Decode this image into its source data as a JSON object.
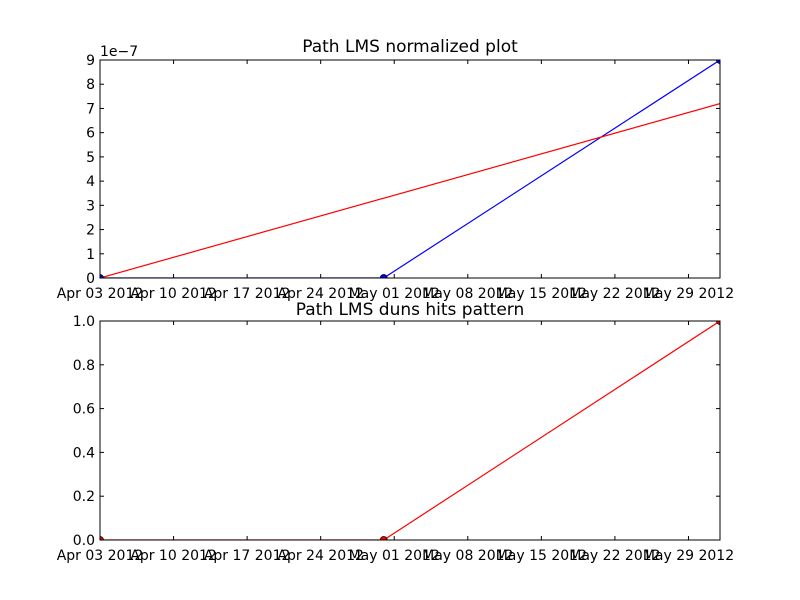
{
  "chart_data": [
    {
      "type": "line",
      "title": "Path LMS normalized plot",
      "y_offset_label": "1e−7",
      "y_scale": 1e-07,
      "x_domain": [
        "2012-04-03",
        "2012-06-01"
      ],
      "ylim": [
        0,
        9
      ],
      "y_ticks": [
        0,
        1,
        2,
        3,
        4,
        5,
        6,
        7,
        8,
        9
      ],
      "y_tick_labels": [
        "0",
        "1",
        "2",
        "3",
        "4",
        "5",
        "6",
        "7",
        "8",
        "9"
      ],
      "x_ticks": [
        "2012-04-03",
        "2012-04-10",
        "2012-04-17",
        "2012-04-24",
        "2012-05-01",
        "2012-05-08",
        "2012-05-15",
        "2012-05-22",
        "2012-05-29"
      ],
      "x_tick_labels": [
        "Apr 03 2012",
        "Apr 10 2012",
        "Apr 17 2012",
        "Apr 24 2012",
        "May 01 2012",
        "May 08 2012",
        "May 15 2012",
        "May 22 2012",
        "May 29 2012"
      ],
      "grid": false,
      "series": [
        {
          "color": "#0000ff",
          "markers": true,
          "points": [
            {
              "x": "2012-04-03",
              "y": 0
            },
            {
              "x": "2012-04-30",
              "y": 0
            },
            {
              "x": "2012-06-01",
              "y": 9
            }
          ]
        },
        {
          "color": "#ff0000",
          "markers": false,
          "points": [
            {
              "x": "2012-04-03",
              "y": 0
            },
            {
              "x": "2012-06-01",
              "y": 7.2
            }
          ]
        }
      ]
    },
    {
      "type": "line",
      "title": "Path LMS duns hits pattern",
      "x_domain": [
        "2012-04-03",
        "2012-06-01"
      ],
      "ylim": [
        0,
        1
      ],
      "y_ticks": [
        0,
        0.2,
        0.4,
        0.6,
        0.8,
        1.0
      ],
      "y_tick_labels": [
        "0.0",
        "0.2",
        "0.4",
        "0.6",
        "0.8",
        "1.0"
      ],
      "x_ticks": [
        "2012-04-03",
        "2012-04-10",
        "2012-04-17",
        "2012-04-24",
        "2012-05-01",
        "2012-05-08",
        "2012-05-15",
        "2012-05-22",
        "2012-05-29"
      ],
      "x_tick_labels": [
        "Apr 03 2012",
        "Apr 10 2012",
        "Apr 17 2012",
        "Apr 24 2012",
        "May 01 2012",
        "May 08 2012",
        "May 15 2012",
        "May 22 2012",
        "May 29 2012"
      ],
      "grid": false,
      "series": [
        {
          "color": "#ff0000",
          "markers": true,
          "points": [
            {
              "x": "2012-04-03",
              "y": 0
            },
            {
              "x": "2012-04-30",
              "y": 0
            },
            {
              "x": "2012-06-01",
              "y": 1
            }
          ]
        }
      ]
    }
  ]
}
